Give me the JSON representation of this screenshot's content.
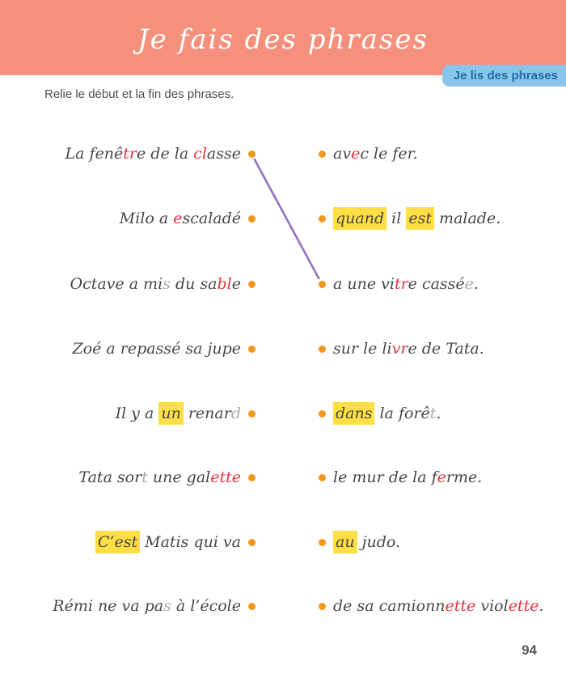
{
  "header": {
    "title": "Je fais des phrases",
    "badge_label": "Je lis des phrases"
  },
  "instruction": "Relie le début et la fin des phrases.",
  "page_number": "94",
  "colors": {
    "banner": "#f4907b",
    "badge_bg": "#8cc3e8",
    "badge_text": "#1c6fa6",
    "ink": "#474747",
    "red": "#e5333f",
    "silent": "#aaaaaa",
    "highlight": "#ffdf43",
    "dot": "#f2971b",
    "line": "#9173bd",
    "muted": "#595959"
  },
  "matching": {
    "left_items": [
      {
        "segments": [
          {
            "t": "La fenê",
            "s": "n"
          },
          {
            "t": "tr",
            "s": "r"
          },
          {
            "t": "e de la ",
            "s": "n"
          },
          {
            "t": "cl",
            "s": "r"
          },
          {
            "t": "asse",
            "s": "n"
          }
        ]
      },
      {
        "segments": [
          {
            "t": "Milo a ",
            "s": "n"
          },
          {
            "t": "e",
            "s": "r"
          },
          {
            "t": "scaladé",
            "s": "n"
          }
        ]
      },
      {
        "segments": [
          {
            "t": "Octave a mi",
            "s": "n"
          },
          {
            "t": "s",
            "s": "g"
          },
          {
            "t": " du sa",
            "s": "n"
          },
          {
            "t": "bl",
            "s": "r"
          },
          {
            "t": "e",
            "s": "n"
          }
        ]
      },
      {
        "segments": [
          {
            "t": "Zoé a repassé sa jupe",
            "s": "n"
          }
        ]
      },
      {
        "segments": [
          {
            "t": "Il y a ",
            "s": "n"
          },
          {
            "t": "un",
            "s": "h"
          },
          {
            "t": " renar",
            "s": "n"
          },
          {
            "t": "d",
            "s": "g"
          }
        ]
      },
      {
        "segments": [
          {
            "t": "Tata sor",
            "s": "n"
          },
          {
            "t": "t",
            "s": "g"
          },
          {
            "t": " une gal",
            "s": "n"
          },
          {
            "t": "ette",
            "s": "r"
          }
        ]
      },
      {
        "segments": [
          {
            "t": "C’est",
            "s": "h"
          },
          {
            "t": " Matis qui va",
            "s": "n"
          }
        ]
      },
      {
        "segments": [
          {
            "t": "Rémi ne va pa",
            "s": "n"
          },
          {
            "t": "s",
            "s": "g"
          },
          {
            "t": " à l’école",
            "s": "n"
          }
        ]
      }
    ],
    "right_items": [
      {
        "segments": [
          {
            "t": "av",
            "s": "n"
          },
          {
            "t": "e",
            "s": "r"
          },
          {
            "t": "c le fer.",
            "s": "n"
          }
        ]
      },
      {
        "segments": [
          {
            "t": "quand",
            "s": "h"
          },
          {
            "t": " il ",
            "s": "n"
          },
          {
            "t": "est",
            "s": "h"
          },
          {
            "t": " malade.",
            "s": "n"
          }
        ]
      },
      {
        "segments": [
          {
            "t": "a une vi",
            "s": "n"
          },
          {
            "t": "tr",
            "s": "r"
          },
          {
            "t": "e cassé",
            "s": "n"
          },
          {
            "t": "e",
            "s": "g"
          },
          {
            "t": ".",
            "s": "n"
          }
        ]
      },
      {
        "segments": [
          {
            "t": "sur le li",
            "s": "n"
          },
          {
            "t": "vr",
            "s": "r"
          },
          {
            "t": "e de Tata.",
            "s": "n"
          }
        ]
      },
      {
        "segments": [
          {
            "t": "dans",
            "s": "h"
          },
          {
            "t": " la forê",
            "s": "n"
          },
          {
            "t": "t",
            "s": "g"
          },
          {
            "t": ".",
            "s": "n"
          }
        ]
      },
      {
        "segments": [
          {
            "t": "le mur de la f",
            "s": "n"
          },
          {
            "t": "e",
            "s": "r"
          },
          {
            "t": "rme.",
            "s": "n"
          }
        ]
      },
      {
        "segments": [
          {
            "t": "au",
            "s": "h"
          },
          {
            "t": " judo.",
            "s": "n"
          }
        ]
      },
      {
        "segments": [
          {
            "t": "de sa camionn",
            "s": "n"
          },
          {
            "t": "ette",
            "s": "r"
          },
          {
            "t": " viol",
            "s": "n"
          },
          {
            "t": "ette",
            "s": "r"
          },
          {
            "t": ".",
            "s": "n"
          }
        ]
      }
    ],
    "drawn_connection": {
      "left_index": 0,
      "right_index": 2
    }
  }
}
